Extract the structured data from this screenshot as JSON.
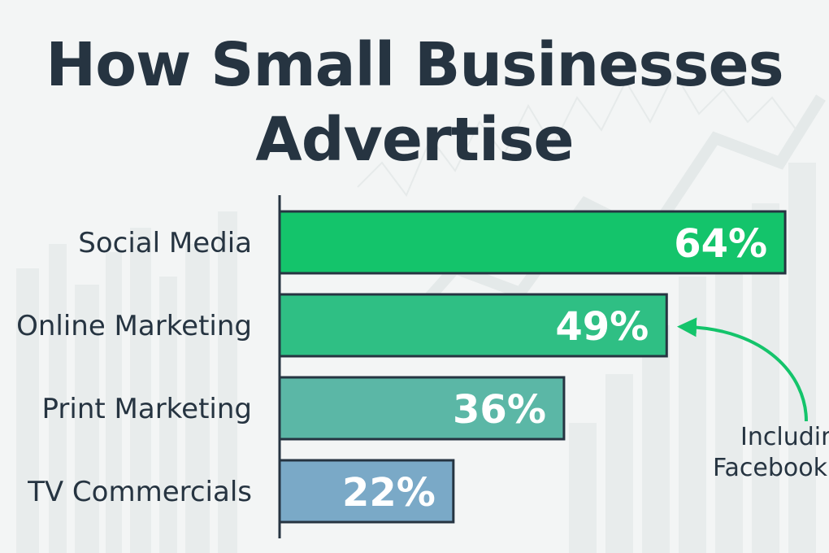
{
  "chart_data": {
    "type": "bar",
    "orientation": "horizontal",
    "title_lines": [
      "How Small Businesses",
      "Advertise"
    ],
    "categories": [
      "Social Media",
      "Online Marketing",
      "Print Marketing",
      "TV Commercials"
    ],
    "values": [
      64,
      49,
      36,
      22
    ],
    "value_labels": [
      "64%",
      "49%",
      "36%",
      "22%"
    ],
    "bar_colors": [
      "#14c46b",
      "#2fbf84",
      "#5bb7a6",
      "#7aa9c7"
    ],
    "outline_color": "#263441",
    "annotation": {
      "lines": [
        "Including",
        "Facebook"
      ],
      "points_to": "Online Marketing",
      "arrow_color": "#14c46b"
    }
  },
  "colors": {
    "title": "#263441",
    "label": "#263441",
    "value_text": "#ffffff",
    "background": "#f3f5f5"
  }
}
